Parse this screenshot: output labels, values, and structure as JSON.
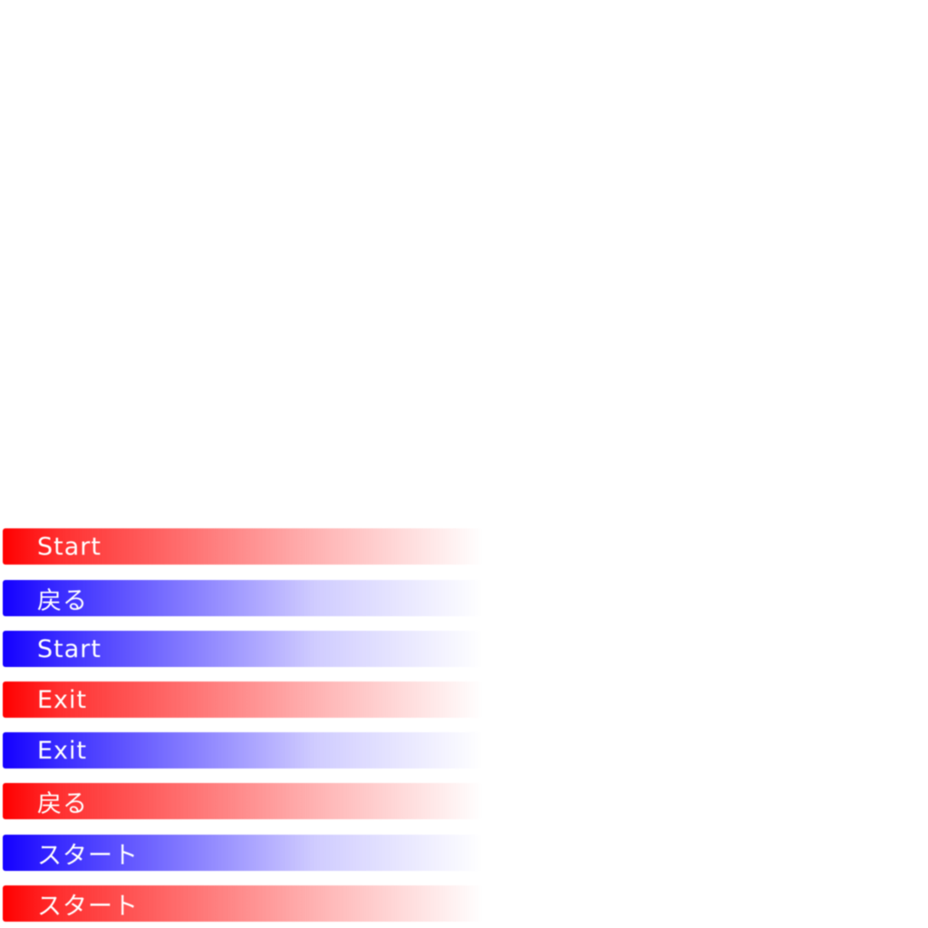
{
  "colors": {
    "red": "#ff0000",
    "blue": "#1400ff"
  },
  "buttons": [
    {
      "label": "Start",
      "color": "red"
    },
    {
      "label": "戻る",
      "color": "blue"
    },
    {
      "label": "Start",
      "color": "blue"
    },
    {
      "label": "Exit",
      "color": "red"
    },
    {
      "label": "Exit",
      "color": "blue"
    },
    {
      "label": "戻る",
      "color": "red"
    },
    {
      "label": "スタート",
      "color": "blue"
    },
    {
      "label": "スタート",
      "color": "red"
    }
  ]
}
